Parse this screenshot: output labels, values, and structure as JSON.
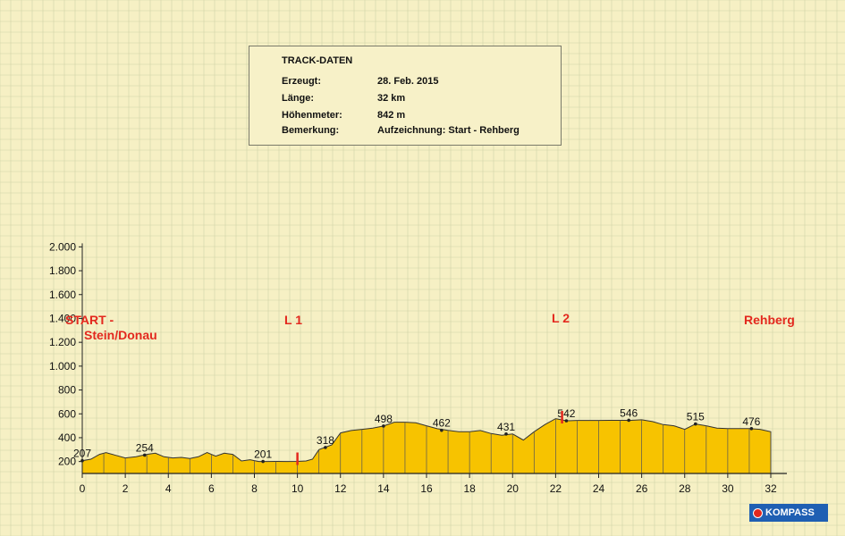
{
  "chart_data": {
    "type": "area",
    "xlim": [
      0,
      32
    ],
    "ylim": [
      100,
      2000
    ],
    "x_ticks": [
      0,
      2,
      4,
      6,
      8,
      10,
      12,
      14,
      16,
      18,
      20,
      22,
      24,
      26,
      28,
      30,
      32
    ],
    "y_ticks": [
      200,
      400,
      600,
      800,
      "1.000",
      "1.200",
      "1.400",
      "1.600",
      "1.800",
      "2.000"
    ],
    "y_tick_values": [
      200,
      400,
      600,
      800,
      1000,
      1200,
      1400,
      1600,
      1800,
      2000
    ],
    "grid": true,
    "fill_color": "#f7c300",
    "line_color": "#333333",
    "profile": {
      "x": [
        0,
        0.4,
        0.8,
        1.1,
        1.5,
        2.0,
        2.5,
        3.0,
        3.4,
        3.8,
        4.2,
        4.6,
        5.0,
        5.4,
        5.8,
        6.2,
        6.6,
        7.0,
        7.4,
        7.8,
        8.2,
        8.6,
        9.0,
        9.5,
        10.0,
        10.4,
        10.7,
        11.0,
        11.3,
        11.6,
        12.0,
        12.5,
        13.0,
        13.5,
        14.0,
        14.5,
        15.0,
        15.5,
        16.0,
        16.5,
        17.0,
        17.5,
        18.0,
        18.5,
        19.0,
        19.5,
        20.0,
        20.5,
        21.0,
        21.5,
        22.0,
        22.5,
        23.0,
        23.5,
        24.0,
        24.5,
        25.0,
        25.5,
        26.0,
        26.5,
        27.0,
        27.5,
        28.0,
        28.5,
        29.0,
        29.5,
        30.0,
        30.5,
        31.0,
        31.5,
        32.0
      ],
      "y": [
        207,
        220,
        260,
        275,
        255,
        230,
        240,
        260,
        270,
        240,
        230,
        235,
        225,
        240,
        275,
        245,
        270,
        260,
        205,
        215,
        200,
        200,
        201,
        200,
        201,
        205,
        220,
        300,
        320,
        340,
        440,
        460,
        470,
        480,
        498,
        530,
        530,
        525,
        500,
        475,
        462,
        450,
        450,
        460,
        435,
        420,
        431,
        380,
        450,
        510,
        560,
        542,
        545,
        545,
        545,
        546,
        546,
        546,
        550,
        535,
        510,
        500,
        470,
        515,
        500,
        480,
        476,
        476,
        476,
        470,
        450
      ]
    },
    "point_labels": [
      {
        "x": 0,
        "y": 207,
        "label": "207"
      },
      {
        "x": 2.9,
        "y": 254,
        "label": "254"
      },
      {
        "x": 8.4,
        "y": 201,
        "label": "201"
      },
      {
        "x": 11.3,
        "y": 318,
        "label": "318"
      },
      {
        "x": 14.0,
        "y": 498,
        "label": "498"
      },
      {
        "x": 16.7,
        "y": 462,
        "label": "462"
      },
      {
        "x": 19.7,
        "y": 431,
        "label": "431"
      },
      {
        "x": 22.5,
        "y": 542,
        "label": "542"
      },
      {
        "x": 25.4,
        "y": 546,
        "label": "546"
      },
      {
        "x": 28.5,
        "y": 515,
        "label": "515"
      },
      {
        "x": 31.1,
        "y": 476,
        "label": "476"
      }
    ],
    "markers": [
      {
        "x": 10.0,
        "label": "L 1"
      },
      {
        "x": 22.3,
        "label": "L 2"
      }
    ],
    "annotations": {
      "start_line1": "START -",
      "start_line2": "Stein/Donau",
      "l1": "L 1",
      "l2": "L 2",
      "end": "Rehberg"
    }
  },
  "track_info": {
    "title": "TRACK-DATEN",
    "rows": [
      {
        "label": "Erzeugt:",
        "value": "28. Feb. 2015"
      },
      {
        "label": "Länge:",
        "value": "32 km"
      },
      {
        "label": "Höhenmeter:",
        "value": "842 m"
      },
      {
        "label": "Bemerkung:",
        "value": "Aufzeichnung: Start - Rehberg"
      }
    ]
  },
  "logo": {
    "text": "KOMPASS",
    "color": "#1f5fb3"
  }
}
